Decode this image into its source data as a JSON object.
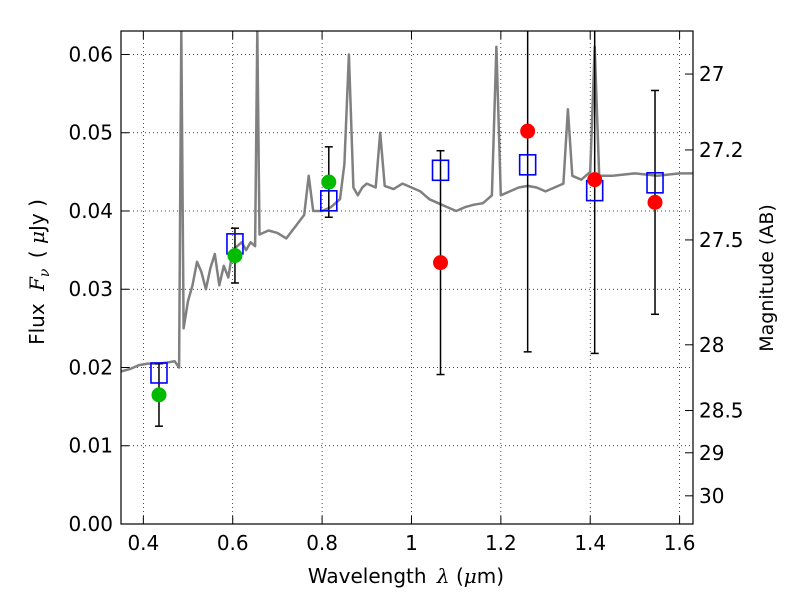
{
  "chart_data": {
    "type": "scatter",
    "xlabel_prefix": "Wavelength",
    "xlabel_symbol": "λ",
    "xlabel_unit_open": "(",
    "xlabel_unit_mu": "μ",
    "xlabel_unit_rest": "m)",
    "ylabel_prefix": "Flux",
    "ylabel_symbol": "F",
    "ylabel_subscript": "ν",
    "ylabel_unit_open": "(",
    "ylabel_unit_mu": "μ",
    "ylabel_unit_rest": "Jy )",
    "ylabel_right": "Magnitude (AB)",
    "xlim": [
      0.35,
      1.63
    ],
    "ylim": [
      0.0,
      0.063
    ],
    "x_ticks": [
      0.4,
      0.6,
      0.8,
      1.0,
      1.2,
      1.4,
      1.6
    ],
    "x_tick_labels": [
      "0.4",
      "0.6",
      "0.8",
      "1",
      "1.2",
      "1.4",
      "1.6"
    ],
    "y_ticks": [
      0.0,
      0.01,
      0.02,
      0.03,
      0.04,
      0.05,
      0.06
    ],
    "y_tick_labels": [
      "0.00",
      "0.01",
      "0.02",
      "0.03",
      "0.04",
      "0.05",
      "0.06"
    ],
    "right_ticks": [
      {
        "label": "27",
        "flux": 0.0575
      },
      {
        "label": "27.2",
        "flux": 0.0478
      },
      {
        "label": "27.5",
        "flux": 0.0363
      },
      {
        "label": "28",
        "flux": 0.0229
      },
      {
        "label": "28.5",
        "flux": 0.0145
      },
      {
        "label": "29",
        "flux": 0.0091
      },
      {
        "label": "30",
        "flux": 0.0036
      }
    ],
    "grid": true,
    "series": [
      {
        "kind": "spectrum",
        "color": "#808080",
        "points": [
          [
            0.35,
            0.0195
          ],
          [
            0.37,
            0.0198
          ],
          [
            0.39,
            0.0203
          ],
          [
            0.41,
            0.0205
          ],
          [
            0.43,
            0.0205
          ],
          [
            0.45,
            0.0206
          ],
          [
            0.47,
            0.0208
          ],
          [
            0.48,
            0.02
          ],
          [
            0.485,
            0.063
          ],
          [
            0.49,
            0.025
          ],
          [
            0.5,
            0.0285
          ],
          [
            0.51,
            0.0305
          ],
          [
            0.52,
            0.0335
          ],
          [
            0.53,
            0.0322
          ],
          [
            0.54,
            0.03
          ],
          [
            0.55,
            0.0327
          ],
          [
            0.56,
            0.0345
          ],
          [
            0.57,
            0.0305
          ],
          [
            0.58,
            0.033
          ],
          [
            0.59,
            0.0315
          ],
          [
            0.6,
            0.035
          ],
          [
            0.61,
            0.0355
          ],
          [
            0.62,
            0.036
          ],
          [
            0.63,
            0.035
          ],
          [
            0.64,
            0.036
          ],
          [
            0.65,
            0.0355
          ],
          [
            0.655,
            0.063
          ],
          [
            0.66,
            0.037
          ],
          [
            0.68,
            0.0375
          ],
          [
            0.7,
            0.0372
          ],
          [
            0.72,
            0.0365
          ],
          [
            0.74,
            0.038
          ],
          [
            0.76,
            0.0395
          ],
          [
            0.77,
            0.0445
          ],
          [
            0.78,
            0.04
          ],
          [
            0.8,
            0.04
          ],
          [
            0.82,
            0.0405
          ],
          [
            0.84,
            0.0415
          ],
          [
            0.85,
            0.046
          ],
          [
            0.86,
            0.06
          ],
          [
            0.87,
            0.043
          ],
          [
            0.88,
            0.042
          ],
          [
            0.89,
            0.043
          ],
          [
            0.9,
            0.0435
          ],
          [
            0.92,
            0.043
          ],
          [
            0.93,
            0.05
          ],
          [
            0.94,
            0.0432
          ],
          [
            0.96,
            0.0428
          ],
          [
            0.98,
            0.0435
          ],
          [
            1.0,
            0.043
          ],
          [
            1.02,
            0.0425
          ],
          [
            1.04,
            0.0415
          ],
          [
            1.06,
            0.041
          ],
          [
            1.08,
            0.0405
          ],
          [
            1.1,
            0.04
          ],
          [
            1.12,
            0.0405
          ],
          [
            1.14,
            0.0408
          ],
          [
            1.16,
            0.041
          ],
          [
            1.18,
            0.042
          ],
          [
            1.19,
            0.061
          ],
          [
            1.2,
            0.042
          ],
          [
            1.22,
            0.0425
          ],
          [
            1.24,
            0.043
          ],
          [
            1.26,
            0.0432
          ],
          [
            1.28,
            0.043
          ],
          [
            1.3,
            0.0425
          ],
          [
            1.32,
            0.043
          ],
          [
            1.34,
            0.0435
          ],
          [
            1.35,
            0.053
          ],
          [
            1.36,
            0.0445
          ],
          [
            1.38,
            0.044
          ],
          [
            1.4,
            0.045
          ],
          [
            1.41,
            0.061
          ],
          [
            1.42,
            0.0445
          ],
          [
            1.45,
            0.0445
          ],
          [
            1.5,
            0.0448
          ],
          [
            1.55,
            0.0445
          ],
          [
            1.6,
            0.0448
          ],
          [
            1.63,
            0.0448
          ]
        ]
      },
      {
        "kind": "model_squares",
        "color": "#0000ff",
        "points": [
          [
            0.435,
            0.0193
          ],
          [
            0.605,
            0.0358
          ],
          [
            0.815,
            0.0413
          ],
          [
            1.065,
            0.0452
          ],
          [
            1.26,
            0.0459
          ],
          [
            1.41,
            0.0426
          ],
          [
            1.545,
            0.0436
          ]
        ]
      },
      {
        "kind": "observed_green",
        "color": "#00bb00",
        "points": [
          [
            0.435,
            0.0165,
            0.004
          ],
          [
            0.605,
            0.0343,
            0.0035
          ],
          [
            0.815,
            0.0437,
            0.0045
          ]
        ]
      },
      {
        "kind": "observed_red",
        "color": "#ff0000",
        "points": [
          [
            1.065,
            0.0334,
            0.0143
          ],
          [
            1.26,
            0.0502,
            0.0282
          ],
          [
            1.41,
            0.044,
            0.0222
          ],
          [
            1.545,
            0.0411,
            0.0143
          ]
        ]
      }
    ]
  }
}
